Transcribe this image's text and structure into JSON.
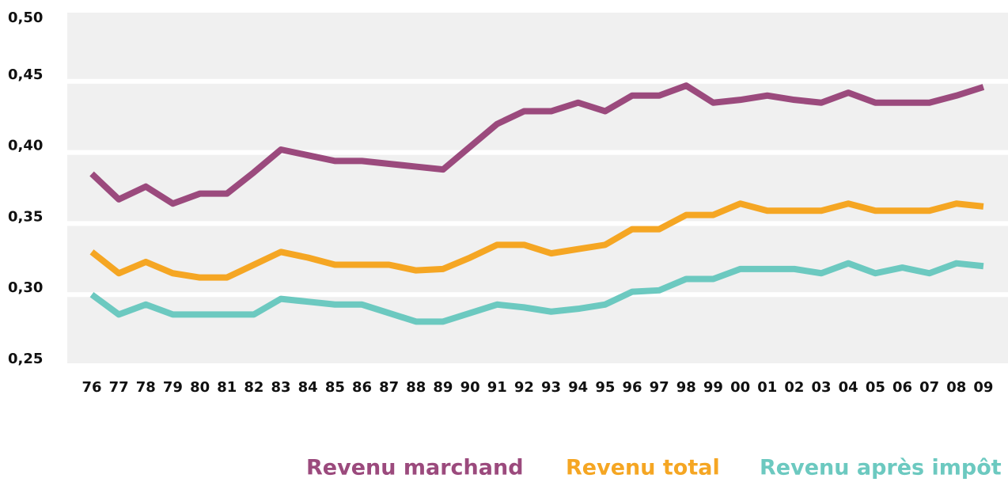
{
  "chart_data": {
    "type": "line",
    "categories": [
      "76",
      "77",
      "78",
      "79",
      "80",
      "81",
      "82",
      "83",
      "84",
      "85",
      "86",
      "87",
      "88",
      "89",
      "90",
      "91",
      "92",
      "93",
      "94",
      "95",
      "96",
      "97",
      "98",
      "99",
      "00",
      "01",
      "02",
      "03",
      "04",
      "05",
      "06",
      "07",
      "08",
      "09"
    ],
    "series": [
      {
        "name": "Revenu marchand",
        "color": "#9b4a7d",
        "values": [
          0.385,
          0.367,
          0.376,
          0.364,
          0.371,
          0.371,
          0.386,
          0.402,
          0.398,
          0.394,
          0.394,
          0.392,
          0.39,
          0.388,
          0.404,
          0.42,
          0.429,
          0.429,
          0.435,
          0.429,
          0.44,
          0.44,
          0.447,
          0.435,
          0.437,
          0.44,
          0.437,
          0.435,
          0.442,
          0.435,
          0.435,
          0.435,
          0.44,
          0.446
        ]
      },
      {
        "name": "Revenu total",
        "color": "#f5a623",
        "values": [
          0.33,
          0.315,
          0.323,
          0.315,
          0.312,
          0.312,
          0.321,
          0.33,
          0.326,
          0.321,
          0.321,
          0.321,
          0.317,
          0.318,
          0.326,
          0.335,
          0.335,
          0.329,
          0.332,
          0.335,
          0.346,
          0.346,
          0.356,
          0.356,
          0.364,
          0.359,
          0.359,
          0.359,
          0.364,
          0.359,
          0.359,
          0.359,
          0.364,
          0.362
        ]
      },
      {
        "name": "Revenu après impôt",
        "color": "#6cc9c0",
        "values": [
          0.3,
          0.286,
          0.293,
          0.286,
          0.286,
          0.286,
          0.286,
          0.297,
          0.295,
          0.293,
          0.293,
          0.287,
          0.281,
          0.281,
          0.287,
          0.293,
          0.291,
          0.288,
          0.29,
          0.293,
          0.302,
          0.303,
          0.311,
          0.311,
          0.318,
          0.318,
          0.318,
          0.315,
          0.322,
          0.315,
          0.319,
          0.315,
          0.322,
          0.32
        ]
      }
    ],
    "ylim": [
      0.25,
      0.5
    ],
    "yticks": [
      {
        "value": 0.25,
        "label": "0,25"
      },
      {
        "value": 0.3,
        "label": "0,30"
      },
      {
        "value": 0.35,
        "label": "0,35"
      },
      {
        "value": 0.4,
        "label": "0,40"
      },
      {
        "value": 0.45,
        "label": "0,45"
      },
      {
        "value": 0.5,
        "label": "0,50"
      }
    ],
    "grid": true
  }
}
